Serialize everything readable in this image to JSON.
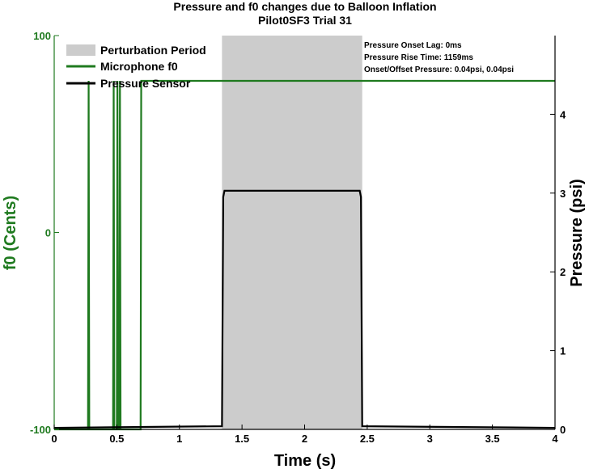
{
  "chart_data": {
    "type": "line",
    "title": "Pressure and f0 changes due to Balloon Inflation",
    "subtitle": "Pilot0SF3 Trial 31",
    "xlabel": "Time (s)",
    "ylabel_left": "f0 (Cents)",
    "ylabel_right": "Pressure (psi)",
    "xlim": [
      0,
      4
    ],
    "ylim_left": [
      -100,
      100
    ],
    "ylim_right": [
      0,
      5
    ],
    "x_ticks": [
      "0",
      "0.5",
      "1",
      "1.5",
      "2",
      "2.5",
      "3",
      "3.5",
      "4"
    ],
    "y_left_ticks": [
      "-100",
      "0",
      "100"
    ],
    "y_right_ticks": [
      "0",
      "1",
      "2",
      "3",
      "4"
    ],
    "grid": false,
    "legend_position": "top-left",
    "perturbation_period": {
      "name": "Perturbation Period",
      "start": 1.34,
      "end": 2.46
    },
    "series": [
      {
        "name": "Microphone f0",
        "axis": "left",
        "color": "#1f7a1f",
        "x": [
          0,
          0.27,
          0.275,
          0.28,
          0.47,
          0.475,
          0.48,
          0.5,
          0.505,
          0.51,
          0.52,
          0.525,
          0.53,
          0.69,
          0.695,
          0.7,
          4
        ],
        "y": [
          -100,
          -100,
          77,
          -100,
          -100,
          77,
          -100,
          -100,
          77,
          -100,
          -100,
          77,
          -100,
          -100,
          77,
          77,
          77
        ]
      },
      {
        "name": "Pressure Sensor",
        "axis": "right",
        "color": "#000000",
        "x": [
          0,
          1.34,
          1.35,
          1.36,
          2.44,
          2.45,
          2.46,
          4
        ],
        "y": [
          0.02,
          0.04,
          2.95,
          3.03,
          3.03,
          2.95,
          0.04,
          0.02
        ]
      }
    ],
    "annotations": [
      "Pressure Onset Lag: 0ms",
      "Pressure Rise Time: 1159ms",
      "Onset/Offset Pressure: 0.04psi, 0.04psi"
    ]
  },
  "colors": {
    "f0_axis": "#1f7a1f",
    "pressure": "#000000",
    "perturbation_fill": "#cccccc"
  }
}
